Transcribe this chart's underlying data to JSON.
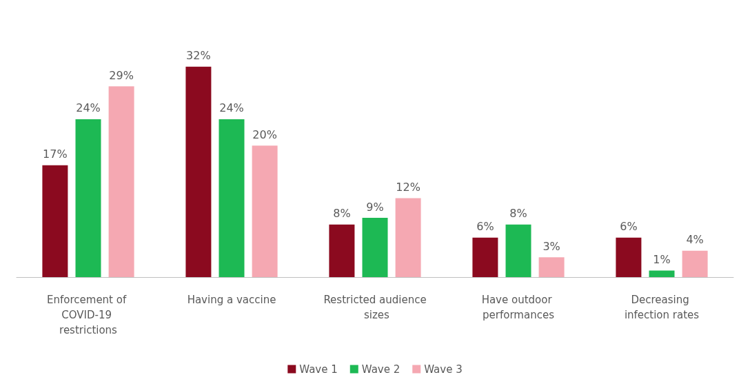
{
  "chart_data": {
    "type": "bar",
    "categories": [
      "Enforcement of COVID-19 restrictions",
      "Having a vaccine",
      "Restricted audience sizes",
      "Have outdoor performances",
      "Decreasing infection rates"
    ],
    "series": [
      {
        "name": "Wave 1",
        "color": "#8b0a1f",
        "values": [
          17,
          32,
          8,
          6,
          6
        ],
        "value_labels": [
          "17%",
          "32%",
          "8%",
          "6%",
          "6%"
        ]
      },
      {
        "name": "Wave 2",
        "color": "#1db954",
        "values": [
          24,
          24,
          9,
          8,
          1
        ],
        "value_labels": [
          "24%",
          "24%",
          "9%",
          "8%",
          "1%"
        ]
      },
      {
        "name": "Wave 3",
        "color": "#f5a8b2",
        "values": [
          29,
          20,
          12,
          3,
          4
        ],
        "value_labels": [
          "29%",
          "20%",
          "12%",
          "3%",
          "4%"
        ]
      }
    ],
    "legend": "bottom"
  }
}
